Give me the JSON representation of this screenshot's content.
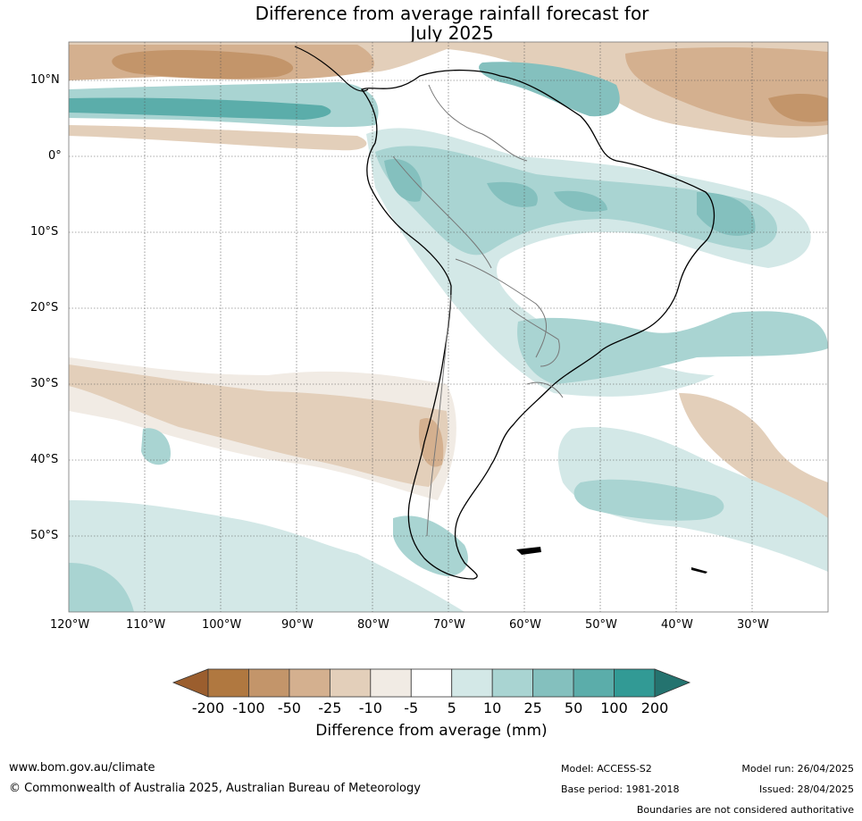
{
  "title_line1": "Difference from average rainfall forecast for",
  "title_line2": "July 2025",
  "lat_labels": [
    "10°N",
    "0°",
    "10°S",
    "20°S",
    "30°S",
    "40°S",
    "50°S"
  ],
  "lon_labels": [
    "120°W",
    "110°W",
    "100°W",
    "90°W",
    "80°W",
    "70°W",
    "60°W",
    "50°W",
    "40°W",
    "30°W"
  ],
  "legend": {
    "title": "Difference from average (mm)",
    "tick_labels": [
      "-200",
      "-100",
      "-50",
      "-25",
      "-10",
      "-5",
      "5",
      "10",
      "25",
      "50",
      "100",
      "200"
    ],
    "colors": [
      "#9b5e2e",
      "#b07840",
      "#c3956a",
      "#d4b08f",
      "#e3cfba",
      "#f1ebe4",
      "#ffffff",
      "#d3e8e7",
      "#a9d4d2",
      "#84c0be",
      "#5badaa",
      "#329a95",
      "#24736f"
    ]
  },
  "footer": {
    "website": "www.bom.gov.au/climate",
    "copyright": "© Commonwealth of Australia 2025, Australian Bureau of Meteorology",
    "model": "Model: ACCESS-S2",
    "base_period": "Base period: 1981-2018",
    "model_run": "Model run: 26/04/2025",
    "issued": "Issued: 28/04/2025",
    "disclaimer": "Boundaries are not considered authoritative"
  }
}
